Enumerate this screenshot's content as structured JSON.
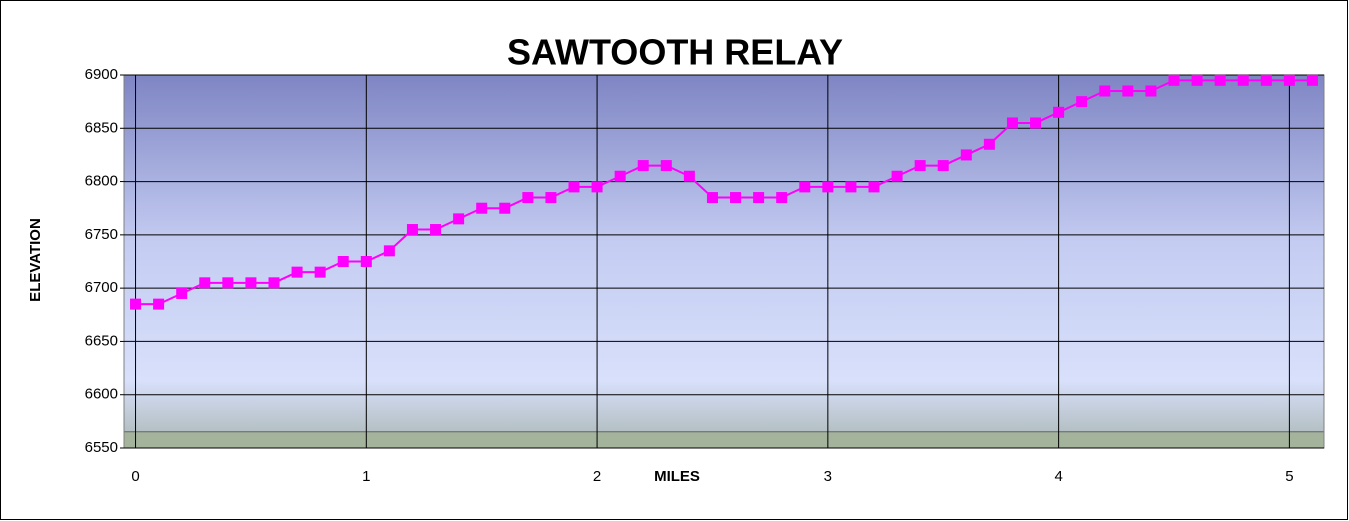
{
  "chart_data": {
    "type": "line",
    "title": "SAWTOOTH RELAY",
    "xlabel": "MILES",
    "ylabel": "ELEVATION",
    "x": [
      0,
      0.1,
      0.2,
      0.3,
      0.4,
      0.5,
      0.6,
      0.7,
      0.8,
      0.9,
      1,
      1.1,
      1.2,
      1.3,
      1.4,
      1.5,
      1.6,
      1.7,
      1.8,
      1.9,
      2,
      2.1,
      2.2,
      2.3,
      2.4,
      2.5,
      2.6,
      2.7,
      2.8,
      2.9,
      3,
      3.1,
      3.2,
      3.3,
      3.4,
      3.5,
      3.6,
      3.7,
      3.8,
      3.9,
      4,
      4.1,
      4.2,
      4.3,
      4.4,
      4.5,
      4.6,
      4.7,
      4.8,
      4.9,
      5,
      5.1
    ],
    "series": [
      {
        "name": "ELEVATION",
        "color": "#ff00ff",
        "values": [
          6685,
          6685,
          6695,
          6705,
          6705,
          6705,
          6705,
          6715,
          6715,
          6725,
          6725,
          6735,
          6755,
          6755,
          6765,
          6775,
          6775,
          6785,
          6785,
          6795,
          6795,
          6805,
          6815,
          6815,
          6805,
          6785,
          6785,
          6785,
          6785,
          6795,
          6795,
          6795,
          6795,
          6805,
          6815,
          6815,
          6825,
          6835,
          6855,
          6855,
          6865,
          6875,
          6885,
          6885,
          6885,
          6895,
          6895,
          6895,
          6895,
          6895,
          6895,
          6895
        ]
      }
    ],
    "xlim": [
      -0.05,
      5.15
    ],
    "xticks": [
      0,
      1,
      2,
      3,
      4,
      5
    ],
    "ylim": [
      6550,
      6900
    ],
    "yticks": [
      6550,
      6600,
      6650,
      6700,
      6750,
      6800,
      6850,
      6900
    ],
    "grid": true
  }
}
